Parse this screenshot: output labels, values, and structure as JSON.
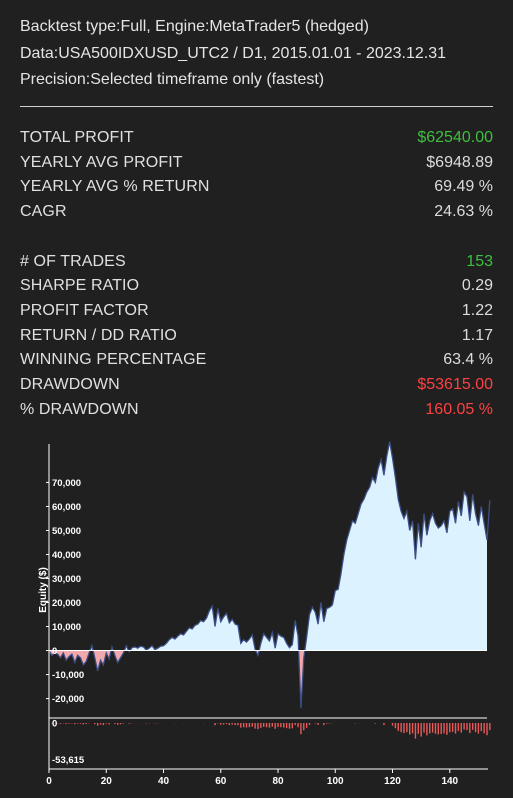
{
  "header": {
    "line1": "Backtest type:Full, Engine:MetaTrader5 (hedged)",
    "line2": "Data:USA500IDXUSD_UTC2 / D1, 2015.01.01 - 2023.12.31",
    "line3": "Precision:Selected timeframe only (fastest)"
  },
  "stats": {
    "total_profit": {
      "label": "TOTAL PROFIT",
      "value": "$62540.00"
    },
    "yearly_avg_profit": {
      "label": "YEARLY AVG PROFIT",
      "value": "$6948.89"
    },
    "yearly_avg_return": {
      "label": "YEARLY AVG % RETURN",
      "value": "69.49 %"
    },
    "cagr": {
      "label": "CAGR",
      "value": "24.63 %"
    },
    "num_trades": {
      "label": "# OF TRADES",
      "value": "153"
    },
    "sharpe": {
      "label": "SHARPE RATIO",
      "value": "0.29"
    },
    "profit_factor": {
      "label": "PROFIT FACTOR",
      "value": "1.22"
    },
    "return_dd": {
      "label": "RETURN / DD RATIO",
      "value": "1.17"
    },
    "winning_pct": {
      "label": "WINNING PERCENTAGE",
      "value": "63.4 %"
    },
    "drawdown": {
      "label": "DRAWDOWN",
      "value": "$53615.00"
    },
    "pct_drawdown": {
      "label": "% DRAWDOWN",
      "value": "160.05 %"
    }
  },
  "colors": {
    "positive": "#3fbf3f",
    "negative": "#ff4040",
    "equity_fill_positive": "#dcf2ff",
    "equity_fill_negative": "#f2a9ae",
    "equity_line": "#3d4f86",
    "drawdown_bars": "#e85a5a"
  },
  "chart_data": {
    "type": "area",
    "ylabel": "Equity ($)",
    "xlabel": "",
    "xlim": [
      0,
      153
    ],
    "ylim": [
      -26000,
      86000
    ],
    "x_ticks": [
      0,
      20,
      40,
      60,
      80,
      100,
      120,
      140
    ],
    "y_ticks": [
      -20000,
      -10000,
      0,
      10000,
      20000,
      30000,
      40000,
      50000,
      60000,
      70000
    ],
    "y_tick_labels": [
      "-20,000",
      "-10,000",
      "0",
      "10,000",
      "20,000",
      "30,000",
      "40,000",
      "50,000",
      "60,000",
      "70,000"
    ],
    "equity": [
      0,
      -2000,
      -1000,
      -1500,
      -3000,
      -1000,
      -4000,
      -2500,
      -1500,
      -5000,
      -2000,
      -3000,
      -6000,
      -4500,
      -1000,
      2000,
      -3000,
      -8500,
      -4000,
      -6000,
      -1000,
      -3500,
      1500,
      -2000,
      -5000,
      -3000,
      -1000,
      2000,
      -500,
      1200,
      1500,
      1000,
      1800,
      1500,
      200,
      1000,
      2000,
      400,
      1000,
      1800,
      2000,
      3000,
      4500,
      5500,
      4800,
      6000,
      7000,
      6500,
      8000,
      9500,
      9000,
      10500,
      11000,
      12500,
      12000,
      13500,
      16500,
      18500,
      10000,
      17500,
      12000,
      14000,
      15500,
      11500,
      13000,
      11000,
      10500,
      3000,
      4500,
      3500,
      4800,
      6500,
      500,
      -2000,
      3000,
      7000,
      5500,
      4000,
      7500,
      1000,
      7000,
      6000,
      5500,
      3000,
      1200,
      2500,
      12500,
      6000,
      -24000,
      -3000,
      5500,
      15000,
      18000,
      16000,
      11000,
      20000,
      12000,
      17500,
      18000,
      19000,
      25000,
      25500,
      32000,
      40000,
      46000,
      50000,
      54000,
      53000,
      57000,
      61000,
      63000,
      66000,
      68000,
      72000,
      70000,
      76000,
      79500,
      73000,
      81000,
      87000,
      80000,
      72000,
      63000,
      58000,
      55000,
      58000,
      50000,
      54000,
      38000,
      53000,
      43000,
      57000,
      48000,
      54000,
      57000,
      53000,
      51000,
      52000,
      54000,
      49000,
      58000,
      59000,
      53000,
      62000,
      56000,
      66000,
      64000,
      54000,
      65000,
      57000,
      52000,
      60000,
      53000,
      46000,
      62540
    ],
    "drawdown_axis": {
      "tick_labels": [
        "0",
        "-53,615"
      ],
      "min": -53615
    },
    "drawdown": [
      0,
      -600,
      -300,
      -500,
      -900,
      -400,
      -1200,
      -800,
      -500,
      -1500,
      -700,
      -1000,
      -1800,
      -1300,
      -400,
      0,
      -1600,
      -3300,
      -2000,
      -2600,
      -900,
      -1800,
      0,
      -1200,
      -2200,
      -1600,
      -700,
      0,
      -800,
      -300,
      0,
      -200,
      0,
      -100,
      -500,
      -300,
      0,
      -500,
      -300,
      0,
      0,
      0,
      0,
      0,
      -200,
      0,
      0,
      -200,
      0,
      0,
      -200,
      0,
      0,
      0,
      -200,
      0,
      0,
      0,
      -2800,
      -500,
      -2200,
      -1800,
      -1200,
      -2500,
      -2000,
      -2600,
      -2800,
      -5800,
      -5300,
      -5700,
      -5200,
      -4500,
      -7000,
      -7700,
      -6200,
      -4800,
      -5300,
      -5800,
      -4500,
      -7200,
      -5000,
      -5300,
      -5600,
      -6400,
      -7000,
      -6600,
      -2600,
      -5200,
      -14000,
      -9000,
      -6000,
      -2500,
      0,
      -700,
      -2300,
      0,
      -2600,
      -900,
      -600,
      -300,
      0,
      0,
      0,
      0,
      0,
      0,
      0,
      -400,
      0,
      0,
      0,
      0,
      0,
      0,
      -800,
      0,
      0,
      -2600,
      0,
      0,
      -3300,
      -6500,
      -9800,
      -11500,
      -12600,
      -11400,
      -14500,
      -13000,
      -19500,
      -13500,
      -17000,
      -12000,
      -15500,
      -13000,
      -12000,
      -13500,
      -14200,
      -13800,
      -13000,
      -14800,
      -11500,
      -11000,
      -13300,
      -9900,
      -12000,
      -8100,
      -8900,
      -12600,
      -8500,
      -11400,
      -13200,
      -10200,
      -12900,
      -15300,
      -9000
    ]
  }
}
